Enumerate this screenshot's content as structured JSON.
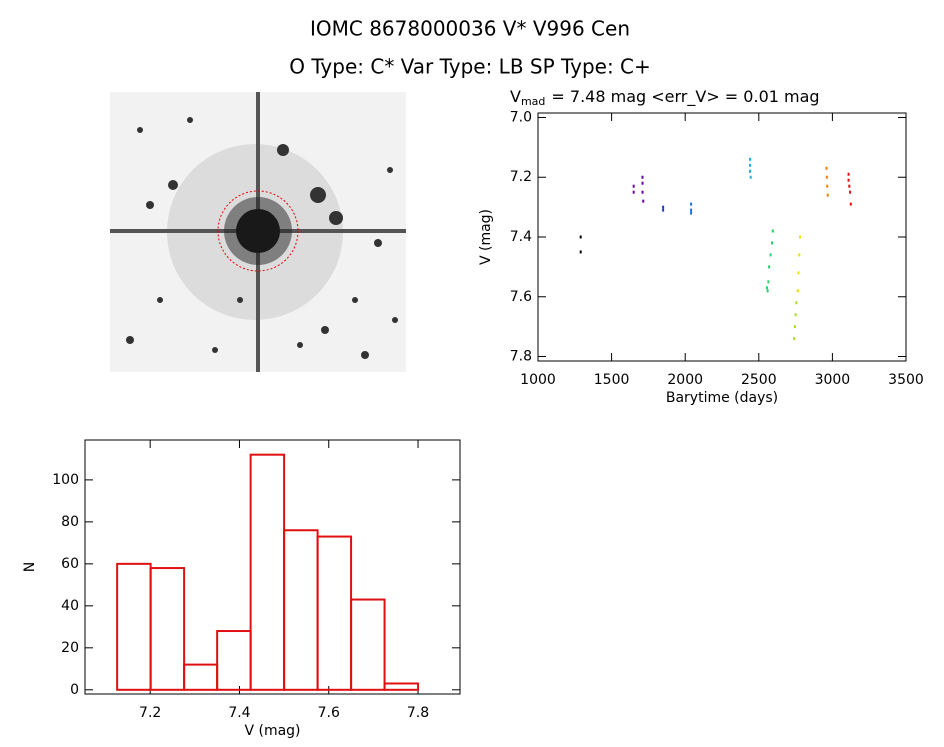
{
  "header": {
    "title": "IOMC 8678000036    V* V996 Cen",
    "subtitle": "O Type: C*  Var Type: LB  SP Type: C+"
  },
  "chart_data": [
    {
      "type": "scatter",
      "title_symbol": "V",
      "title_subscript": "mad",
      "title_rest": "= 7.48 mag <err_V> = 0.01 mag",
      "x_label": "Barytime (days)",
      "y_label": "V (mag)",
      "xlim": [
        1000,
        3500
      ],
      "xticks": [
        1000,
        1500,
        2000,
        2500,
        3000,
        3500
      ],
      "ylim": [
        7.815,
        6.985
      ],
      "yticks": [
        {
          "value": 7,
          "label": "7.0"
        },
        7.2,
        7.4,
        7.6,
        7.8
      ],
      "series": [
        {
          "color": "#000000",
          "x": [
            1290,
            1290
          ],
          "values": [
            7.4,
            7.45
          ]
        },
        {
          "color": "#6a00a8",
          "x": [
            1650,
            1650,
            1710,
            1710,
            1710,
            1715
          ],
          "values": [
            7.23,
            7.25,
            7.2,
            7.22,
            7.25,
            7.28
          ]
        },
        {
          "color": "#1f3fbf",
          "x": [
            1850,
            1850
          ],
          "values": [
            7.3,
            7.31
          ]
        },
        {
          "color": "#1f6fd0",
          "x": [
            2040,
            2040,
            2040
          ],
          "values": [
            7.29,
            7.31,
            7.32
          ]
        },
        {
          "color": "#1fb0e0",
          "x": [
            2440,
            2440,
            2440,
            2445
          ],
          "values": [
            7.14,
            7.16,
            7.18,
            7.2
          ]
        },
        {
          "color": "#22d36a",
          "x": [
            2555,
            2560,
            2565,
            2570,
            2580,
            2590,
            2595
          ],
          "values": [
            7.57,
            7.58,
            7.55,
            7.5,
            7.46,
            7.42,
            7.38
          ]
        },
        {
          "color": "#a6e020",
          "x": [
            2740,
            2745,
            2750,
            2755
          ],
          "values": [
            7.74,
            7.7,
            7.66,
            7.62
          ]
        },
        {
          "color": "#f0e000",
          "x": [
            2765,
            2770,
            2775,
            2780
          ],
          "values": [
            7.58,
            7.52,
            7.46,
            7.4
          ]
        },
        {
          "color": "#f08000",
          "x": [
            2960,
            2962,
            2965,
            2968
          ],
          "values": [
            7.17,
            7.2,
            7.23,
            7.26
          ]
        },
        {
          "color": "#e01010",
          "x": [
            3110,
            3110,
            3115,
            3120,
            3125
          ],
          "values": [
            7.19,
            7.21,
            7.23,
            7.25,
            7.29
          ]
        }
      ]
    },
    {
      "type": "histogram",
      "x_label": "V (mag)",
      "y_label": "N",
      "color": "#e01010",
      "bins": [
        7.126,
        7.201,
        7.276,
        7.35,
        7.425,
        7.5,
        7.575,
        7.65,
        7.725,
        7.8
      ],
      "values": [
        60,
        58,
        12,
        28,
        112,
        76,
        73,
        43,
        3
      ],
      "xlim": [
        7.054,
        7.894
      ],
      "xticks": [
        7.2,
        7.4,
        7.6,
        7.8
      ],
      "ylim": [
        -2,
        119
      ],
      "yticks": [
        0,
        20,
        40,
        60,
        80,
        100
      ]
    }
  ]
}
